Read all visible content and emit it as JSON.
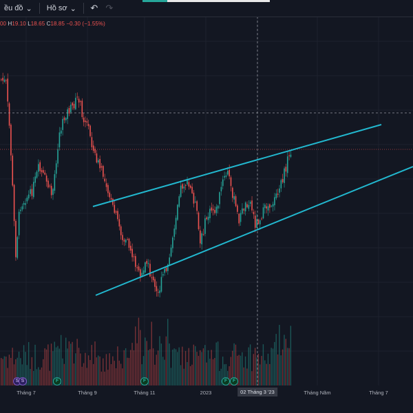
{
  "toolbar": {
    "chart_label": "ều đồ",
    "profile_label": "Hồ sơ",
    "undo_icon": "undo-icon",
    "redo_icon": "redo-icon"
  },
  "ohlc": {
    "o_value": "00",
    "h_key": "H",
    "h_value": "19.10",
    "l_key": "L",
    "l_value": "18.65",
    "c_key": "C",
    "c_value": "18.85",
    "change": "−0.30 (−1.55%)"
  },
  "xaxis": {
    "labels": [
      "Tháng 7",
      "Tháng 9",
      "Tháng 11",
      "2023",
      "Tháng Năm",
      "Tháng 7"
    ],
    "crosshair_label": "02 Tháng 3 '23"
  },
  "events": [
    "S",
    "S",
    "F",
    "F",
    "F",
    "F"
  ],
  "colors": {
    "background": "#131722",
    "up": "#26a69a",
    "down": "#ef5350",
    "trendline": "#22b8cf"
  },
  "chart_data": {
    "type": "candlestick",
    "series": [
      {
        "name": "",
        "approx_close": [
          21.0,
          20.2,
          17.6,
          16.6,
          18.6,
          19.8,
          20.8,
          19.4,
          17.8,
          16.4,
          15.2,
          16.4,
          17.2,
          15.9,
          15.7,
          16.2,
          16.6,
          16.6,
          16.9,
          16.0,
          17.0,
          18.6,
          19.1,
          18.85
        ]
      }
    ],
    "volume_visible": true,
    "trendlines": 2,
    "crosshair_date": "02 Tháng 3 '23",
    "grid": true
  }
}
